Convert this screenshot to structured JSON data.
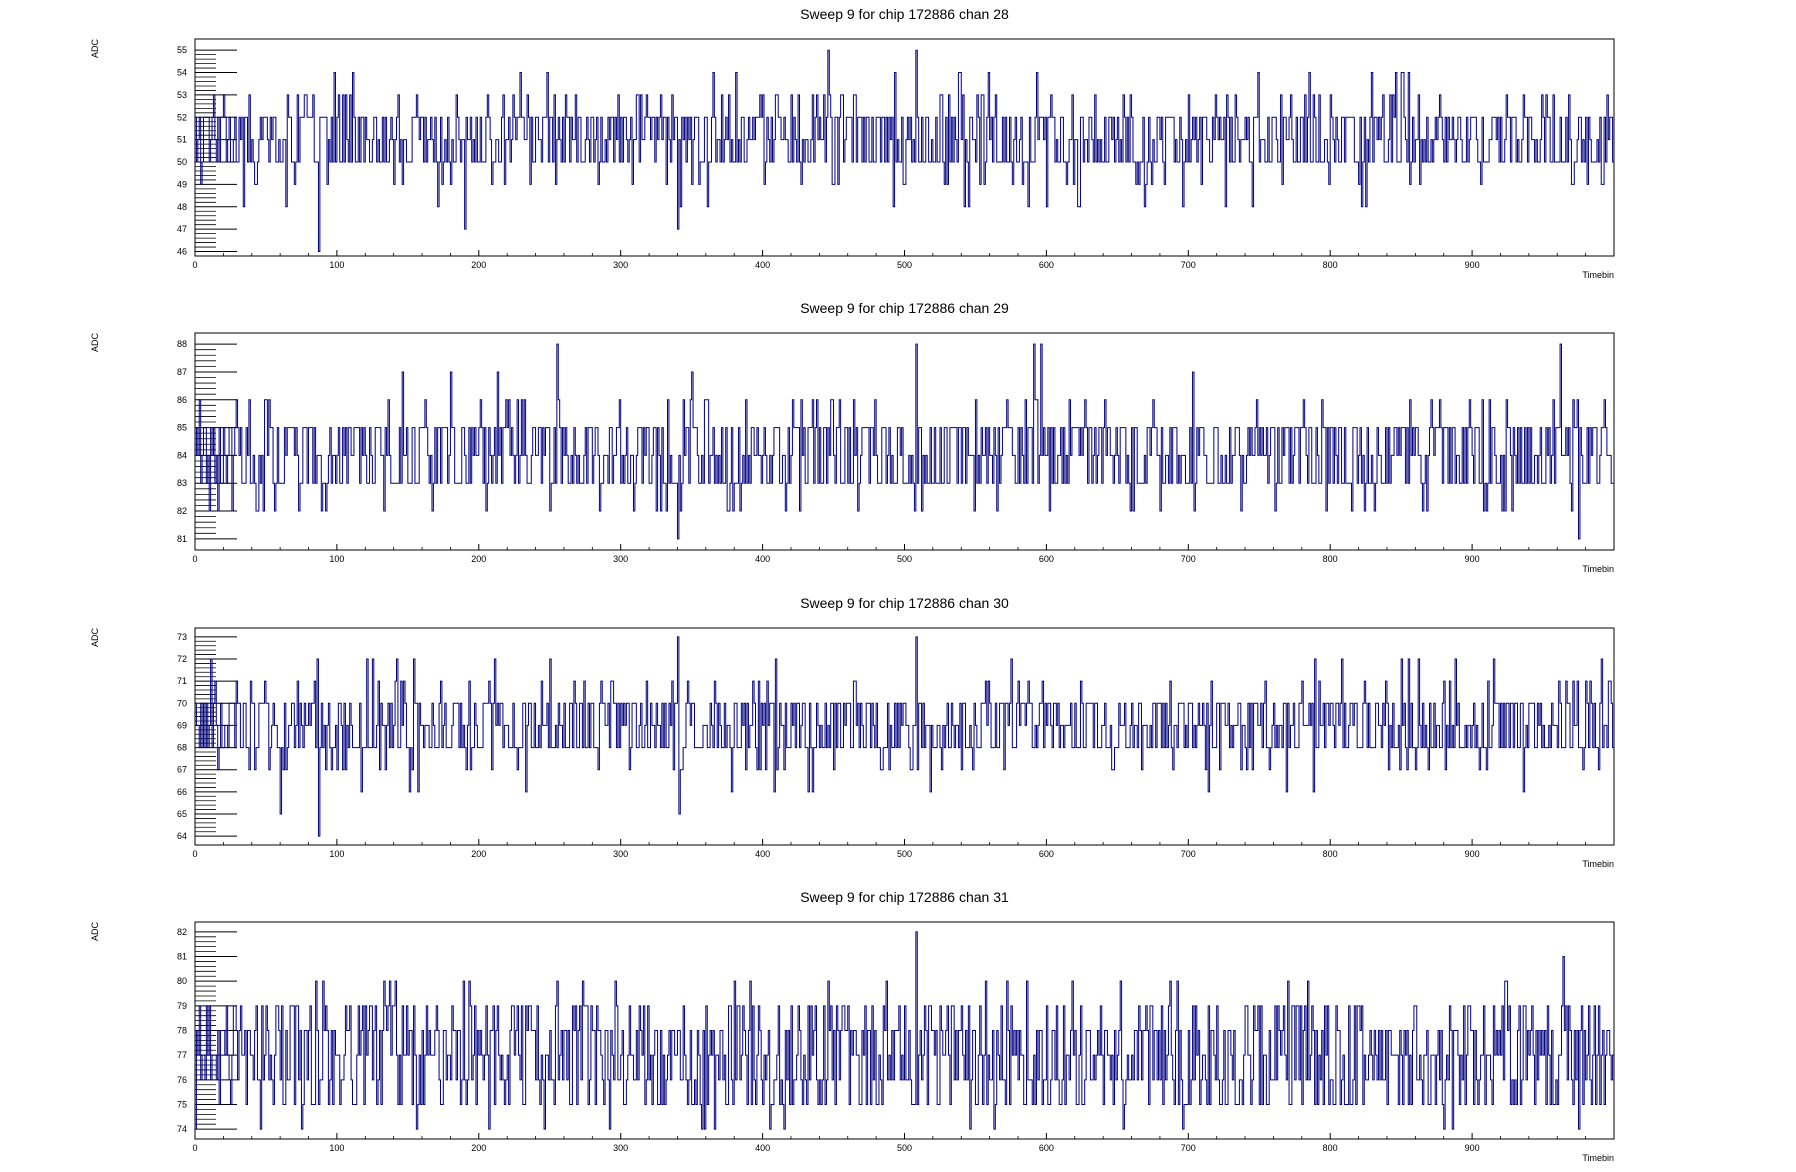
{
  "chart_data": [
    {
      "type": "line",
      "title": "Sweep 9 for chip 172886 chan 28",
      "xlabel": "Timebin",
      "ylabel": "ADC",
      "xlim": [
        0,
        1000
      ],
      "ylim": [
        45.8,
        55.5
      ],
      "x_ticks": [
        0,
        100,
        200,
        300,
        400,
        500,
        600,
        700,
        800,
        900
      ],
      "y_ticks": [
        46,
        47,
        48,
        49,
        50,
        51,
        52,
        53,
        54,
        55
      ],
      "baseline": 50.6,
      "noise_levels": [
        [
          0.2,
          1
        ],
        [
          0.6,
          1
        ],
        [
          0.85,
          1
        ],
        [
          0.97,
          2
        ],
        [
          1.0,
          3
        ]
      ],
      "spikes": [
        {
          "x": 65,
          "y": 53
        },
        {
          "x": 87,
          "y": 46
        },
        {
          "x": 111,
          "y": 54
        },
        {
          "x": 143,
          "y": 53
        },
        {
          "x": 190,
          "y": 47
        },
        {
          "x": 248,
          "y": 54
        },
        {
          "x": 340,
          "y": 47
        },
        {
          "x": 365,
          "y": 54
        },
        {
          "x": 381,
          "y": 54
        },
        {
          "x": 446,
          "y": 55
        },
        {
          "x": 508,
          "y": 55
        },
        {
          "x": 593,
          "y": 54
        },
        {
          "x": 850,
          "y": 54
        },
        {
          "x": 855,
          "y": 54
        },
        {
          "x": 877,
          "y": 53
        },
        {
          "x": 957,
          "y": 53
        }
      ],
      "color": "#000080",
      "seed": 28
    },
    {
      "type": "line",
      "title": "Sweep 9 for chip 172886 chan 29",
      "xlabel": "Timebin",
      "ylabel": "ADC",
      "xlim": [
        0,
        1000
      ],
      "ylim": [
        80.6,
        88.4
      ],
      "x_ticks": [
        0,
        100,
        200,
        300,
        400,
        500,
        600,
        700,
        800,
        900
      ],
      "y_ticks": [
        81,
        82,
        83,
        84,
        85,
        86,
        87,
        88
      ],
      "baseline": 84.4,
      "noise_levels": [
        [
          0.2,
          1
        ],
        [
          0.6,
          1
        ],
        [
          0.88,
          1
        ],
        [
          0.98,
          2
        ],
        [
          1.0,
          2
        ]
      ],
      "spikes": [
        {
          "x": 146,
          "y": 87
        },
        {
          "x": 180,
          "y": 87
        },
        {
          "x": 213,
          "y": 87
        },
        {
          "x": 255,
          "y": 88
        },
        {
          "x": 340,
          "y": 81
        },
        {
          "x": 350,
          "y": 87
        },
        {
          "x": 508,
          "y": 88
        },
        {
          "x": 591,
          "y": 88
        },
        {
          "x": 596,
          "y": 88
        },
        {
          "x": 703,
          "y": 87
        },
        {
          "x": 962,
          "y": 88
        },
        {
          "x": 975,
          "y": 81
        }
      ],
      "color": "#000080",
      "seed": 29
    },
    {
      "type": "line",
      "title": "Sweep 9 for chip 172886 chan 30",
      "xlabel": "Timebin",
      "ylabel": "ADC",
      "xlim": [
        0,
        1000
      ],
      "ylim": [
        63.6,
        73.4
      ],
      "x_ticks": [
        0,
        100,
        200,
        300,
        400,
        500,
        600,
        700,
        800,
        900
      ],
      "y_ticks": [
        64,
        65,
        66,
        67,
        68,
        69,
        70,
        71,
        72,
        73
      ],
      "baseline": 68.6,
      "noise_levels": [
        [
          0.2,
          1
        ],
        [
          0.6,
          1
        ],
        [
          0.88,
          1
        ],
        [
          0.98,
          2
        ],
        [
          1.0,
          3
        ]
      ],
      "spikes": [
        {
          "x": 60,
          "y": 65
        },
        {
          "x": 87,
          "y": 64
        },
        {
          "x": 86,
          "y": 72
        },
        {
          "x": 125,
          "y": 72
        },
        {
          "x": 211,
          "y": 72
        },
        {
          "x": 250,
          "y": 72
        },
        {
          "x": 340,
          "y": 73
        },
        {
          "x": 341,
          "y": 65
        },
        {
          "x": 508,
          "y": 73
        },
        {
          "x": 575,
          "y": 72
        },
        {
          "x": 850,
          "y": 72
        },
        {
          "x": 855,
          "y": 72
        },
        {
          "x": 888,
          "y": 72
        }
      ],
      "color": "#000080",
      "seed": 30
    },
    {
      "type": "line",
      "title": "Sweep 9 for chip 172886 chan 31",
      "xlabel": "Timebin",
      "ylabel": "ADC",
      "xlim": [
        0,
        1000
      ],
      "ylim": [
        73.6,
        82.4
      ],
      "x_ticks": [
        0,
        100,
        200,
        300,
        400,
        500,
        600,
        700,
        800,
        900
      ],
      "y_ticks": [
        74,
        75,
        76,
        77,
        78,
        79,
        80,
        81,
        82
      ],
      "baseline": 76.6,
      "noise_levels": [
        [
          0.2,
          1
        ],
        [
          0.6,
          1
        ],
        [
          0.85,
          2
        ],
        [
          0.97,
          2
        ],
        [
          1.0,
          3
        ]
      ],
      "spikes": [
        {
          "x": 85,
          "y": 80
        },
        {
          "x": 90,
          "y": 80
        },
        {
          "x": 189,
          "y": 80
        },
        {
          "x": 193,
          "y": 80
        },
        {
          "x": 255,
          "y": 80
        },
        {
          "x": 446,
          "y": 80
        },
        {
          "x": 508,
          "y": 82
        },
        {
          "x": 572,
          "y": 80
        },
        {
          "x": 618,
          "y": 80
        },
        {
          "x": 964,
          "y": 81
        },
        {
          "x": 975,
          "y": 74
        },
        {
          "x": 415,
          "y": 74
        },
        {
          "x": 880,
          "y": 74
        }
      ],
      "color": "#000080",
      "seed": 31
    }
  ]
}
